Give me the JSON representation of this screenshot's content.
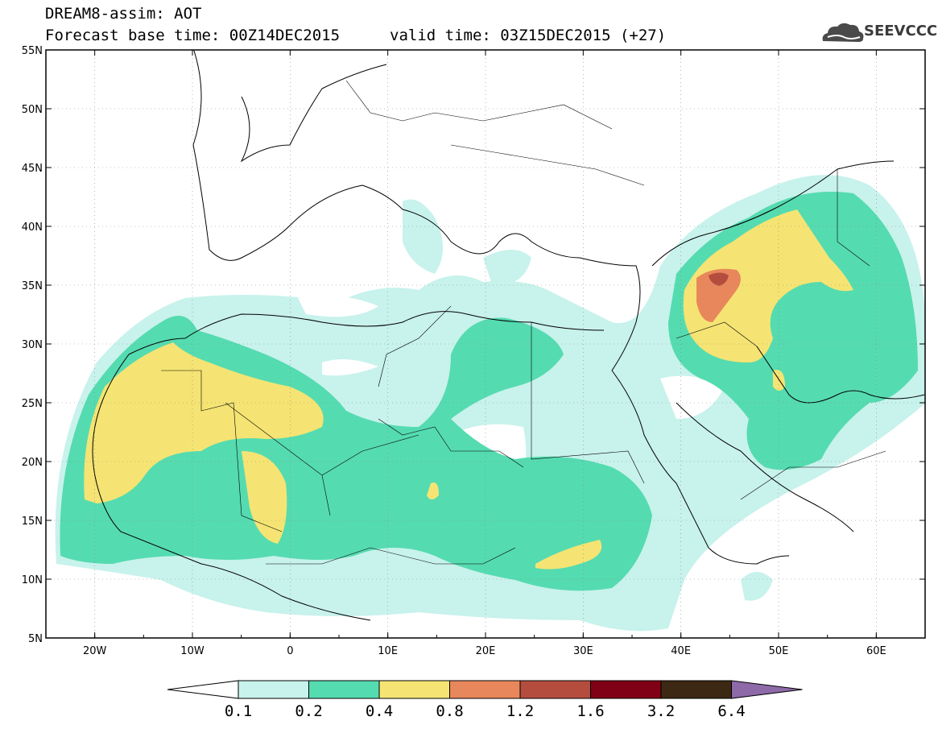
{
  "header": {
    "model_line": "DREAM8-assim: AOT",
    "base_time_line": "Forecast base time: 00Z14DEC2015",
    "valid_time_line": "valid time: 03Z15DEC2015 (+27)",
    "logo_text": "SEEVCCC"
  },
  "axes": {
    "lat_labels": [
      "55N",
      "50N",
      "45N",
      "40N",
      "35N",
      "30N",
      "25N",
      "20N",
      "15N",
      "10N",
      "5N"
    ],
    "lat_values": [
      55,
      50,
      45,
      40,
      35,
      30,
      25,
      20,
      15,
      10,
      5
    ],
    "lon_labels": [
      "20W",
      "10W",
      "0",
      "10E",
      "20E",
      "30E",
      "40E",
      "50E",
      "60E"
    ],
    "lon_values": [
      -20,
      -10,
      0,
      10,
      20,
      30,
      40,
      50,
      60
    ],
    "lon_range": [
      -25,
      65
    ],
    "lat_range": [
      5,
      55
    ],
    "grid": "dotted"
  },
  "colorbar": {
    "labels": [
      "0.1",
      "0.2",
      "0.4",
      "0.8",
      "1.2",
      "1.6",
      "3.2",
      "6.4"
    ],
    "colors": [
      "#ffffff",
      "#c8f2ec",
      "#55dbb0",
      "#f5e473",
      "#e8875c",
      "#b44d3e",
      "#800015",
      "#3d2814",
      "#8e6aa8"
    ]
  },
  "field_colors": {
    "level1": "#c8f2ec",
    "level2": "#55dbb0",
    "level3": "#f5e473",
    "level4": "#e8875c",
    "level5": "#b44d3e"
  }
}
